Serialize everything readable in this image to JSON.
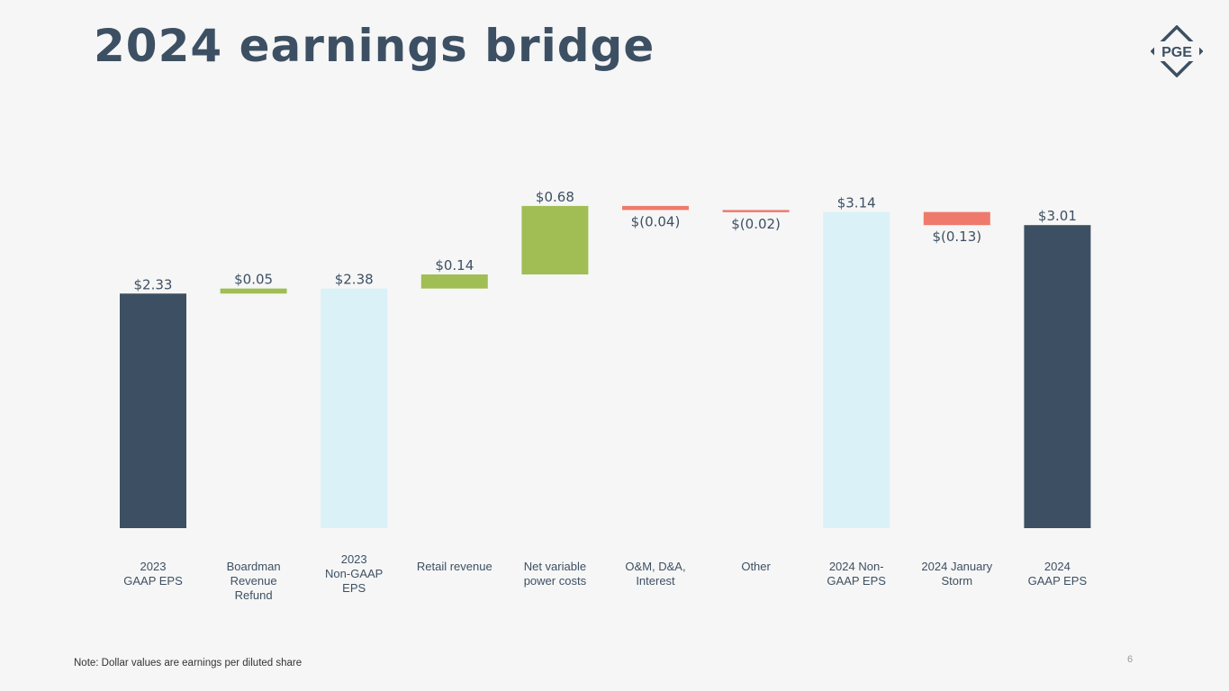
{
  "title": "2024 earnings bridge",
  "logo_text": "PGE",
  "note": "Note: Dollar values are earnings per diluted share",
  "page_number": "6",
  "colors": {
    "total_dark": "#3d5063",
    "total_light": "#daf1f7",
    "increase": "#a0be53",
    "decrease": "#ef7a6c",
    "text": "#3d5063"
  },
  "chart_data": {
    "type": "waterfall",
    "title": "2024 earnings bridge",
    "unit": "earnings per diluted share ($)",
    "ylim": [
      0,
      3.6
    ],
    "items": [
      {
        "category": "2023\nGAAP EPS",
        "kind": "total_dark",
        "value": 2.33,
        "label": "$2.33"
      },
      {
        "category": "Boardman\nRevenue\nRefund",
        "kind": "increase",
        "value": 0.05,
        "label": "$0.05"
      },
      {
        "category": "2023\nNon-GAAP\nEPS",
        "kind": "total_light",
        "value": 2.38,
        "label": "$2.38"
      },
      {
        "category": "Retail revenue",
        "kind": "increase",
        "value": 0.14,
        "label": "$0.14"
      },
      {
        "category": "Net variable\npower costs",
        "kind": "increase",
        "value": 0.68,
        "label": "$0.68"
      },
      {
        "category": "O&M, D&A,\nInterest",
        "kind": "decrease",
        "value": -0.04,
        "label": "$(0.04)"
      },
      {
        "category": "Other",
        "kind": "decrease",
        "value": -0.02,
        "label": "$(0.02)"
      },
      {
        "category": "2024 Non-\nGAAP EPS",
        "kind": "total_light",
        "value": 3.14,
        "label": "$3.14"
      },
      {
        "category": "2024 January\nStorm",
        "kind": "decrease",
        "value": -0.13,
        "label": "$(0.13)"
      },
      {
        "category": "2024\nGAAP EPS",
        "kind": "total_dark",
        "value": 3.01,
        "label": "$3.01"
      }
    ]
  }
}
